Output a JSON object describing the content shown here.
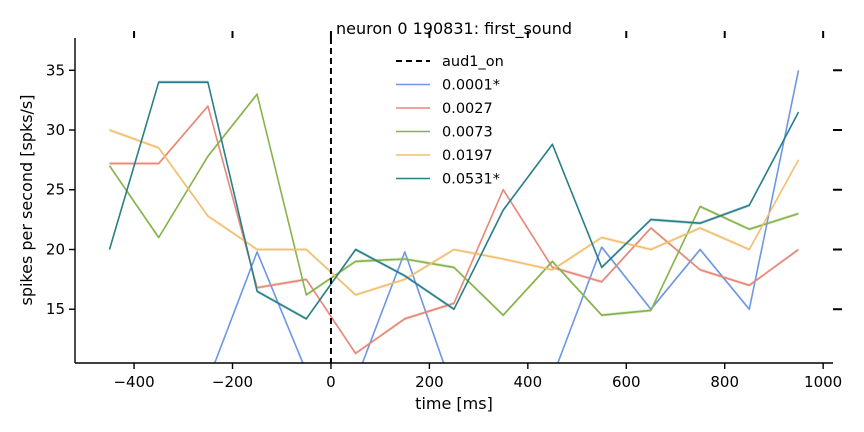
{
  "chart_data": {
    "type": "line",
    "title": "neuron 0 190831: first_sound",
    "xlabel": "time [ms]",
    "ylabel": "spikes per second [spks/s]",
    "xlim": [
      -520,
      1020
    ],
    "ylim": [
      10.5,
      37.7
    ],
    "xticks": [
      -400,
      -200,
      0,
      200,
      400,
      600,
      800,
      1000
    ],
    "xtick_labels": [
      "−400",
      "−200",
      "0",
      "200",
      "400",
      "600",
      "800",
      "1000"
    ],
    "yticks": [
      15,
      20,
      25,
      30,
      35
    ],
    "ytick_labels": [
      "15",
      "20",
      "25",
      "30",
      "35"
    ],
    "grid": false,
    "legend_position": "upper-center",
    "vline": {
      "x": 0,
      "label": "aud1_on",
      "style": "dashed",
      "color": "#000000"
    },
    "x": [
      -450,
      -350,
      -250,
      -150,
      -50,
      50,
      150,
      250,
      350,
      450,
      550,
      650,
      750,
      850,
      950
    ],
    "series": [
      {
        "name": "0.0001*",
        "color": "#6d97e5",
        "values": [
          9.0,
          8.0,
          9.0,
          19.8,
          9.8,
          9.0,
          19.8,
          8.0,
          8.0,
          9.3,
          20.2,
          15.0,
          20.0,
          15.0,
          35.0
        ]
      },
      {
        "name": "0.0027",
        "color": "#e58978",
        "values": [
          27.2,
          27.2,
          32.0,
          16.8,
          17.5,
          11.3,
          14.2,
          15.5,
          25.0,
          18.5,
          17.3,
          21.8,
          18.3,
          17.0,
          20.0
        ]
      },
      {
        "name": "0.0073",
        "color": "#86b34a",
        "values": [
          27.0,
          21.0,
          27.8,
          33.0,
          16.2,
          19.0,
          19.2,
          18.5,
          14.5,
          19.0,
          14.5,
          14.9,
          23.6,
          21.7,
          23.0
        ]
      },
      {
        "name": "0.0197",
        "color": "#f0c070",
        "values": [
          30.0,
          28.5,
          22.8,
          20.0,
          20.0,
          16.2,
          17.5,
          20.0,
          19.2,
          18.3,
          21.0,
          20.0,
          21.8,
          20.0,
          27.5
        ]
      },
      {
        "name": "0.0531*",
        "color": "#2a7f8a",
        "values": [
          20.0,
          34.0,
          34.0,
          16.5,
          14.2,
          20.0,
          17.8,
          15.0,
          23.3,
          28.8,
          18.5,
          22.5,
          22.2,
          23.7,
          31.5
        ]
      }
    ]
  }
}
